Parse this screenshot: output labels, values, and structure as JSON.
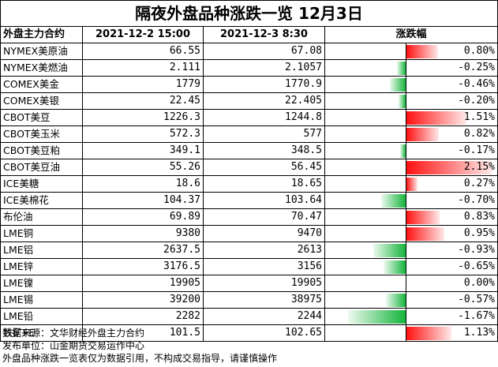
{
  "title": "隔夜外盘品种涨跌一览 12月3日",
  "headers": [
    "外盘主力合约",
    "2021-12-2 15:00",
    "2021-12-3 8:30",
    "涨跌幅"
  ],
  "colors": {
    "positive": "#ff1010",
    "negative": "#14b43c"
  },
  "chart_data": {
    "type": "table",
    "rows": [
      {
        "name": "NYMEX美原油",
        "prev": "66.55",
        "curr": "67.08",
        "pct": 0.8,
        "pct_label": "0.80%"
      },
      {
        "name": "NYMEX美燃油",
        "prev": "2.111",
        "curr": "2.1057",
        "pct": -0.25,
        "pct_label": "-0.25%"
      },
      {
        "name": "COMEX美金",
        "prev": "1779",
        "curr": "1770.9",
        "pct": -0.46,
        "pct_label": "-0.46%"
      },
      {
        "name": "COMEX美银",
        "prev": "22.45",
        "curr": "22.405",
        "pct": -0.2,
        "pct_label": "-0.20%"
      },
      {
        "name": "CBOT美豆",
        "prev": "1226.3",
        "curr": "1244.8",
        "pct": 1.51,
        "pct_label": "1.51%"
      },
      {
        "name": "CBOT美玉米",
        "prev": "572.3",
        "curr": "577",
        "pct": 0.82,
        "pct_label": "0.82%"
      },
      {
        "name": "CBOT美豆粕",
        "prev": "349.1",
        "curr": "348.5",
        "pct": -0.17,
        "pct_label": "-0.17%"
      },
      {
        "name": "CBOT美豆油",
        "prev": "55.26",
        "curr": "56.45",
        "pct": 2.15,
        "pct_label": "2.15%"
      },
      {
        "name": "ICE美糖",
        "prev": "18.6",
        "curr": "18.65",
        "pct": 0.27,
        "pct_label": "0.27%"
      },
      {
        "name": "ICE美棉花",
        "prev": "104.37",
        "curr": "103.64",
        "pct": -0.7,
        "pct_label": "-0.70%"
      },
      {
        "name": "布伦油",
        "prev": "69.89",
        "curr": "70.47",
        "pct": 0.83,
        "pct_label": "0.83%"
      },
      {
        "name": "LME铜",
        "prev": "9380",
        "curr": "9470",
        "pct": 0.95,
        "pct_label": "0.95%"
      },
      {
        "name": "LME铝",
        "prev": "2637.5",
        "curr": "2613",
        "pct": -0.93,
        "pct_label": "-0.93%"
      },
      {
        "name": "LME锌",
        "prev": "3176.5",
        "curr": "3156",
        "pct": -0.65,
        "pct_label": "-0.65%"
      },
      {
        "name": "LME镍",
        "prev": "19905",
        "curr": "19905",
        "pct": 0.0,
        "pct_label": "0.00%"
      },
      {
        "name": "LME锡",
        "prev": "39200",
        "curr": "38975",
        "pct": -0.57,
        "pct_label": "-0.57%"
      },
      {
        "name": "LME铅",
        "prev": "2282",
        "curr": "2244",
        "pct": -1.67,
        "pct_label": "-1.67%"
      },
      {
        "name": "铁矿FE",
        "prev": "101.5",
        "curr": "102.65",
        "pct": 1.13,
        "pct_label": "1.13%"
      }
    ]
  },
  "notes": [
    "数据来源：文华财经外盘主力合约",
    "发布单位：山金期货交易运作中心",
    "外盘品种涨跌一览表仅为数据引用，不构成交易指导，请谨慎操作"
  ]
}
